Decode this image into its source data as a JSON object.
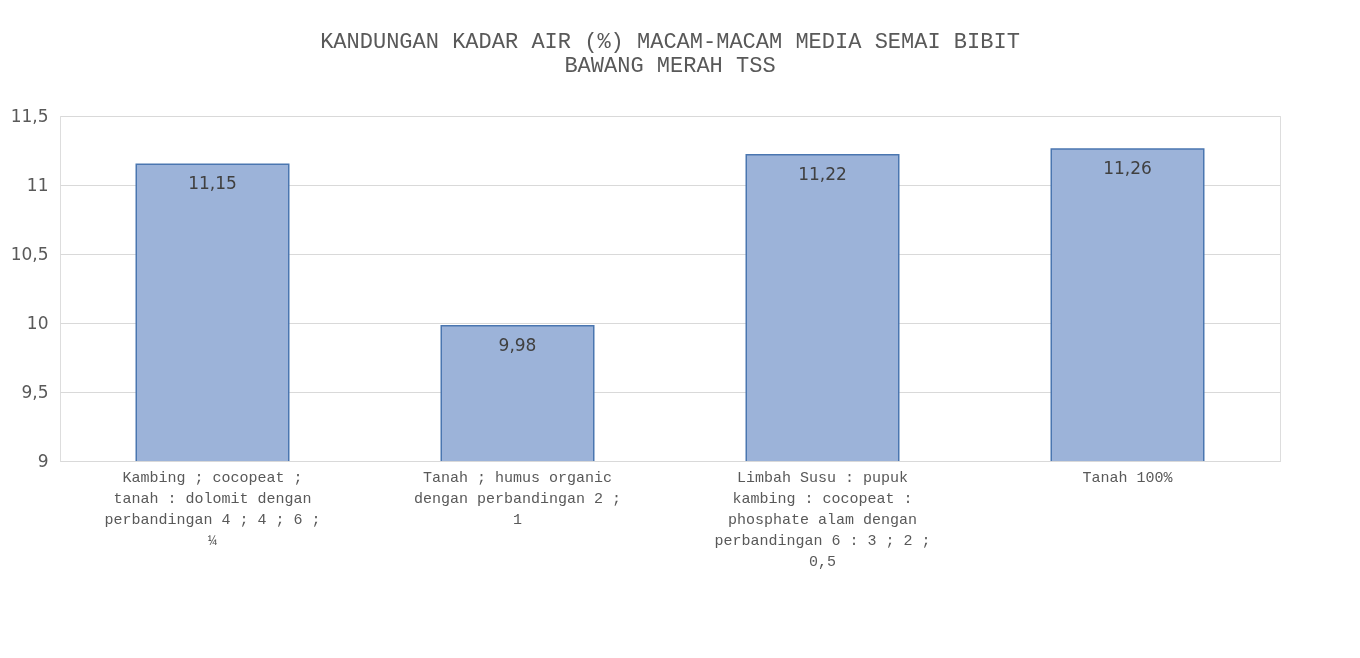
{
  "chart_data": {
    "type": "bar",
    "title": "KANDUNGAN KADAR AIR (%)  MACAM-MACAM MEDIA SEMAI BIBIT BAWANG MERAH TSS",
    "categories": [
      "Kambing ; cocopeat ; tanah : dolomit dengan perbandingan 4 ; 4 ; 6 ; ¼",
      "Tanah ; humus organic dengan perbandingan 2 ; 1",
      "Limbah Susu : pupuk kambing : cocopeat : phosphate alam dengan perbandingan 6 : 3 ; 2 ; 0,5",
      "Tanah 100%"
    ],
    "values": [
      11.15,
      9.98,
      11.22,
      11.26
    ],
    "color": "#9cb3d9",
    "ylim": [
      9,
      11.5
    ],
    "yticks": [
      {
        "value": 9,
        "label": "9"
      },
      {
        "value": 9.5,
        "label": "9,5"
      },
      {
        "value": 10,
        "label": "10"
      },
      {
        "value": 10.5,
        "label": "10,5"
      },
      {
        "value": 11,
        "label": "11"
      },
      {
        "value": 11.5,
        "label": "11,5"
      }
    ],
    "value_labels": [
      "11,15",
      "9,98",
      "11,22",
      "11,26"
    ],
    "grid": "y"
  }
}
